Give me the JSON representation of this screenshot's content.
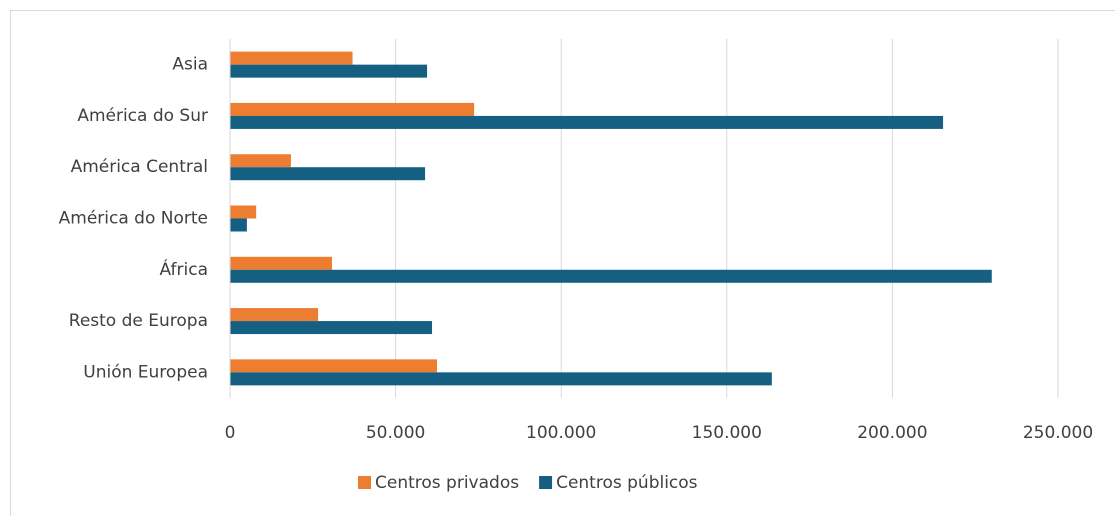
{
  "chart_data": {
    "type": "hbar",
    "categories": [
      "Asia",
      "América do Sur",
      "América Central",
      "América do Norte",
      "África",
      "Resto de Europa",
      "Unión Europea"
    ],
    "series": [
      {
        "name": "Centros privados",
        "color": "#ed7d31",
        "values": [
          37000,
          73700,
          18400,
          7900,
          30800,
          26600,
          62500
        ]
      },
      {
        "name": "Centros públicos",
        "color": "#156082",
        "values": [
          59500,
          215300,
          58900,
          5100,
          230000,
          61000,
          163600
        ]
      }
    ],
    "xlim": [
      0,
      250000
    ],
    "xticks": [
      0,
      {
        "value": 50000,
        "label": "50.000"
      },
      {
        "value": 100000,
        "label": "100.000"
      },
      {
        "value": 150000,
        "label": "150.000"
      },
      {
        "value": 200000,
        "label": "200.000"
      },
      {
        "value": 250000,
        "label": "250.000"
      }
    ],
    "grid": true,
    "legend": "bottom"
  }
}
